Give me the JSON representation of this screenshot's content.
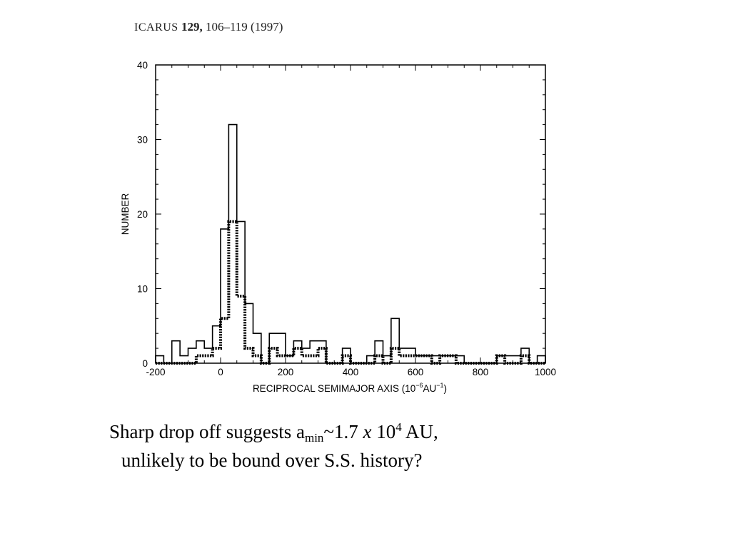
{
  "citation": {
    "journal": "ICARUS",
    "volume": "129,",
    "pages_year": "106–119 (1997)"
  },
  "caption": {
    "line1_pre": "Sharp drop off suggests a",
    "line1_sub": "min",
    "line1_mid": "~1.7 ",
    "line1_x": "x",
    "line1_base": " 10",
    "line1_sup": "4",
    "line1_post": " AU,",
    "line2": "unlikely to be bound over S.S. history?"
  },
  "chart_data": {
    "type": "histogram",
    "xlabel": "RECIPROCAL SEMIMAJOR AXIS (10",
    "xlabel_exp": "−6",
    "xlabel_unit": "AU",
    "xlabel_exp2": "−1",
    "xlabel_close": ")",
    "ylabel": "NUMBER",
    "xlim": [
      -200,
      1000
    ],
    "ylim": [
      0,
      40
    ],
    "x_ticks": [
      "-200",
      "0",
      "200",
      "400",
      "600",
      "800",
      "1000"
    ],
    "y_ticks": [
      "0",
      "10",
      "20",
      "30",
      "40"
    ],
    "grid": false,
    "bin_width": 25,
    "bin_starts": [
      -200,
      -175,
      -150,
      -125,
      -100,
      -75,
      -50,
      -25,
      0,
      25,
      50,
      75,
      100,
      125,
      150,
      175,
      200,
      225,
      250,
      275,
      300,
      325,
      350,
      375,
      400,
      425,
      450,
      475,
      500,
      525,
      550,
      575,
      600,
      625,
      650,
      675,
      700,
      725,
      750,
      775,
      800,
      825,
      850,
      875,
      900,
      925,
      950,
      975
    ],
    "series": [
      {
        "style": "solid-thin",
        "values": [
          1,
          0,
          3,
          1,
          2,
          3,
          2,
          5,
          18,
          32,
          19,
          8,
          4,
          0,
          4,
          4,
          1,
          3,
          2,
          3,
          3,
          0,
          0,
          2,
          0,
          0,
          1,
          3,
          1,
          6,
          2,
          2,
          1,
          1,
          1,
          1,
          1,
          1,
          0,
          0,
          0,
          0,
          1,
          1,
          1,
          2,
          0,
          1
        ]
      },
      {
        "style": "dotted-thick",
        "values": [
          0,
          0,
          0,
          0,
          0,
          1,
          1,
          2,
          6,
          19,
          9,
          2,
          1,
          0,
          2,
          1,
          1,
          2,
          1,
          1,
          2,
          0,
          0,
          1,
          0,
          0,
          0,
          1,
          0,
          2,
          1,
          1,
          1,
          1,
          0,
          1,
          1,
          0,
          0,
          0,
          0,
          0,
          1,
          0,
          0,
          1,
          0,
          0
        ]
      }
    ]
  }
}
